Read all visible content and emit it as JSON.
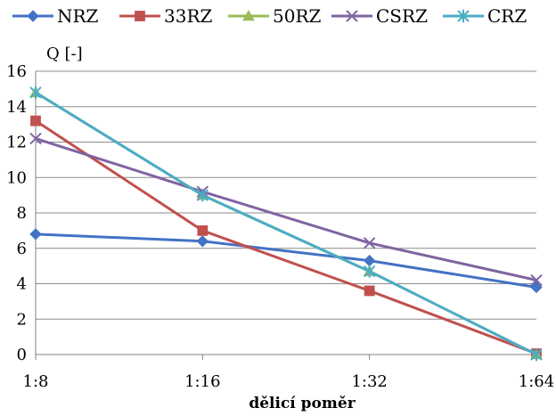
{
  "chart_data": {
    "type": "line",
    "title": "",
    "ylabel": "Q [-]",
    "xlabel": "dělicí poměr",
    "categories": [
      "1:8",
      "1:16",
      "1:32",
      "1:64"
    ],
    "ylim": [
      0,
      16
    ],
    "yticks": [
      0,
      2,
      4,
      6,
      8,
      10,
      12,
      14,
      16
    ],
    "grid": "horizontal",
    "legend_position": "top",
    "series": [
      {
        "name": "NRZ",
        "values": [
          6.8,
          6.4,
          5.3,
          3.8
        ],
        "color": "#4472C4",
        "marker": "diamond"
      },
      {
        "name": "33RZ",
        "values": [
          13.2,
          7.0,
          3.6,
          0.05
        ],
        "color": "#C0504D",
        "marker": "square"
      },
      {
        "name": "50RZ",
        "values": [
          14.8,
          9.0,
          4.7,
          0.0
        ],
        "color": "#9BBB59",
        "marker": "triangle"
      },
      {
        "name": "CSRZ",
        "values": [
          12.2,
          9.2,
          6.3,
          4.2
        ],
        "color": "#8064A2",
        "marker": "x"
      },
      {
        "name": "CRZ",
        "values": [
          14.8,
          9.0,
          4.7,
          0.0
        ],
        "color": "#4BACC6",
        "marker": "star"
      }
    ]
  }
}
